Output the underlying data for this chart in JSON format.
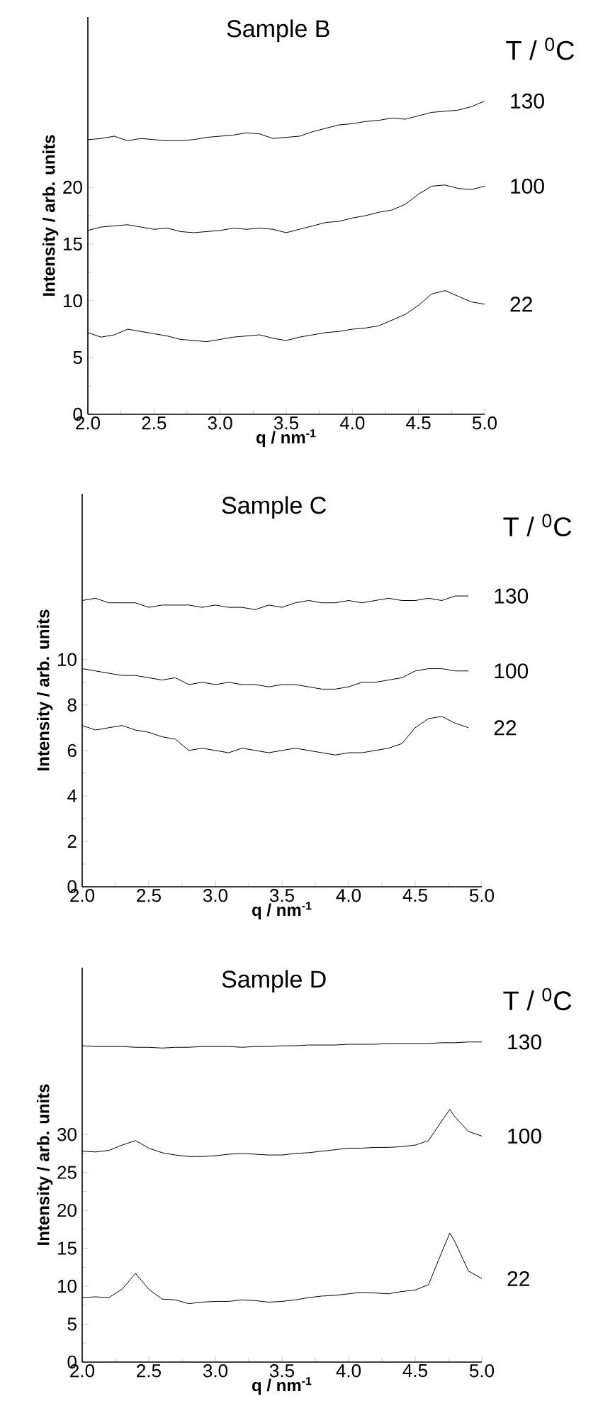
{
  "chart_data": [
    {
      "type": "line",
      "title": "Sample B",
      "xlabel": "**q / nm$^{-1}$**",
      "ylabel": "**Intensity / arb. units**",
      "legend_title": "T / $^{0}$C",
      "marker": "none",
      "xlim": [
        2.0,
        5.0
      ],
      "ylim": [
        0,
        35
      ],
      "xticks": [
        {
          "value": 2.0,
          "label": "2.0"
        },
        {
          "value": 2.5,
          "label": "2.5"
        },
        {
          "value": 3.0,
          "label": "3.0"
        },
        {
          "value": 3.5,
          "label": "3.5"
        },
        {
          "value": 4.0,
          "label": "4.0"
        },
        {
          "value": 4.5,
          "label": "4.5"
        },
        {
          "value": 5.0,
          "label": "5.0"
        }
      ],
      "yticks": [
        0,
        5,
        10,
        15,
        20
      ],
      "x": [
        2.0,
        2.1,
        2.2,
        2.3,
        2.4,
        2.5,
        2.6,
        2.7,
        2.8,
        2.9,
        3.0,
        3.1,
        3.2,
        3.3,
        3.4,
        3.5,
        3.6,
        3.7,
        3.8,
        3.9,
        4.0,
        4.1,
        4.2,
        4.3,
        4.4,
        4.5,
        4.6,
        4.7,
        4.8,
        4.9,
        5.0
      ],
      "series": [
        {
          "name": "130",
          "color": "#000000",
          "values": [
            24.2,
            24.3,
            24.5,
            24.1,
            24.3,
            24.2,
            24.1,
            24.1,
            24.2,
            24.4,
            24.5,
            24.6,
            24.8,
            24.7,
            24.3,
            24.4,
            24.5,
            24.9,
            25.2,
            25.5,
            25.6,
            25.8,
            25.9,
            26.1,
            26.0,
            26.3,
            26.6,
            26.7,
            26.8,
            27.1,
            27.6
          ]
        },
        {
          "name": "100",
          "color": "#000000",
          "values": [
            16.2,
            16.5,
            16.6,
            16.7,
            16.5,
            16.3,
            16.4,
            16.1,
            16.0,
            16.1,
            16.2,
            16.4,
            16.3,
            16.4,
            16.3,
            16.0,
            16.3,
            16.6,
            16.9,
            17.0,
            17.3,
            17.5,
            17.8,
            18.0,
            18.5,
            19.4,
            20.1,
            20.2,
            19.9,
            19.8,
            20.1
          ]
        },
        {
          "name": "22",
          "color": "#000000",
          "values": [
            7.2,
            6.8,
            7.0,
            7.5,
            7.3,
            7.1,
            6.9,
            6.6,
            6.5,
            6.4,
            6.6,
            6.8,
            6.9,
            7.0,
            6.7,
            6.5,
            6.8,
            7.0,
            7.2,
            7.3,
            7.5,
            7.6,
            7.8,
            8.3,
            8.8,
            9.6,
            10.6,
            10.9,
            10.4,
            9.9,
            9.7
          ]
        }
      ]
    },
    {
      "type": "line",
      "title": "Sample C",
      "xlabel": "**q / nm$^{-1}$**",
      "ylabel": "**Intensity / arb. units**",
      "legend_title": "T / $^{0}$C",
      "marker": "none",
      "xlim": [
        2.0,
        5.0
      ],
      "ylim": [
        0,
        17.3
      ],
      "xticks": [
        {
          "value": 2.0,
          "label": "2.0"
        },
        {
          "value": 2.5,
          "label": "2.5"
        },
        {
          "value": 3.0,
          "label": "3.0"
        },
        {
          "value": 3.5,
          "label": "3.5"
        },
        {
          "value": 4.0,
          "label": "4.0"
        },
        {
          "value": 4.5,
          "label": "4.5"
        },
        {
          "value": 5.0,
          "label": "5.0"
        }
      ],
      "yticks": [
        0,
        2,
        4,
        6,
        8,
        10
      ],
      "x": [
        2.0,
        2.1,
        2.2,
        2.3,
        2.4,
        2.5,
        2.6,
        2.7,
        2.8,
        2.9,
        3.0,
        3.1,
        3.2,
        3.3,
        3.4,
        3.5,
        3.6,
        3.7,
        3.8,
        3.9,
        4.0,
        4.1,
        4.2,
        4.3,
        4.4,
        4.5,
        4.6,
        4.7,
        4.8,
        4.9
      ],
      "series": [
        {
          "name": "130",
          "color": "#000000",
          "values": [
            12.6,
            12.7,
            12.5,
            12.5,
            12.5,
            12.3,
            12.4,
            12.4,
            12.4,
            12.3,
            12.4,
            12.3,
            12.3,
            12.2,
            12.4,
            12.3,
            12.5,
            12.6,
            12.5,
            12.5,
            12.6,
            12.5,
            12.6,
            12.7,
            12.6,
            12.6,
            12.7,
            12.6,
            12.8,
            12.8
          ]
        },
        {
          "name": "100",
          "color": "#000000",
          "values": [
            9.6,
            9.5,
            9.4,
            9.3,
            9.3,
            9.2,
            9.1,
            9.2,
            8.9,
            9.0,
            8.9,
            9.0,
            8.9,
            8.9,
            8.8,
            8.9,
            8.9,
            8.8,
            8.7,
            8.7,
            8.8,
            9.0,
            9.0,
            9.1,
            9.2,
            9.5,
            9.6,
            9.6,
            9.5,
            9.5
          ]
        },
        {
          "name": "22",
          "color": "#000000",
          "values": [
            7.1,
            6.9,
            7.0,
            7.1,
            6.9,
            6.8,
            6.6,
            6.5,
            6.0,
            6.1,
            6.0,
            5.9,
            6.1,
            6.0,
            5.9,
            6.0,
            6.1,
            6.0,
            5.9,
            5.8,
            5.9,
            5.9,
            6.0,
            6.1,
            6.3,
            7.0,
            7.4,
            7.5,
            7.2,
            7.0
          ]
        }
      ]
    },
    {
      "type": "line",
      "title": "Sample D",
      "xlabel": "**q / nm$^{-1}$**",
      "ylabel": "**Intensity / arb. units**",
      "legend_title": "T / $^{0}$C",
      "marker": "none",
      "xlim": [
        2.0,
        5.0
      ],
      "ylim": [
        0,
        52
      ],
      "xticks": [
        {
          "value": 2.0,
          "label": "2.0"
        },
        {
          "value": 2.5,
          "label": "2.5"
        },
        {
          "value": 3.0,
          "label": "3.0"
        },
        {
          "value": 3.5,
          "label": "3.5"
        },
        {
          "value": 4.0,
          "label": "4.0"
        },
        {
          "value": 4.5,
          "label": "4.5"
        },
        {
          "value": 5.0,
          "label": "5.0"
        }
      ],
      "yticks": [
        0,
        5,
        10,
        15,
        20,
        25,
        30
      ],
      "x": [
        2.0,
        2.1,
        2.2,
        2.3,
        2.4,
        2.5,
        2.6,
        2.7,
        2.8,
        2.9,
        3.0,
        3.1,
        3.2,
        3.3,
        3.4,
        3.5,
        3.6,
        3.7,
        3.8,
        3.9,
        4.0,
        4.1,
        4.2,
        4.3,
        4.4,
        4.5,
        4.6,
        4.7,
        4.76,
        4.8,
        4.9,
        5.0
      ],
      "series": [
        {
          "name": "130",
          "color": "#000000",
          "values": [
            41.7,
            41.6,
            41.6,
            41.6,
            41.5,
            41.5,
            41.4,
            41.5,
            41.5,
            41.6,
            41.6,
            41.6,
            41.5,
            41.6,
            41.6,
            41.7,
            41.7,
            41.8,
            41.8,
            41.8,
            41.9,
            41.9,
            41.9,
            42.0,
            42.0,
            42.0,
            42.0,
            42.1,
            42.1,
            42.1,
            42.2,
            42.2
          ]
        },
        {
          "name": "100",
          "color": "#000000",
          "values": [
            27.8,
            27.7,
            27.9,
            28.6,
            29.2,
            28.2,
            27.6,
            27.3,
            27.1,
            27.1,
            27.2,
            27.4,
            27.5,
            27.4,
            27.3,
            27.3,
            27.5,
            27.6,
            27.8,
            28.0,
            28.2,
            28.2,
            28.3,
            28.3,
            28.4,
            28.6,
            29.2,
            31.8,
            33.3,
            32.3,
            30.4,
            29.8
          ]
        },
        {
          "name": "22",
          "color": "#000000",
          "values": [
            8.5,
            8.6,
            8.5,
            9.6,
            11.7,
            9.6,
            8.3,
            8.2,
            7.7,
            7.9,
            8.0,
            8.0,
            8.2,
            8.1,
            7.9,
            8.0,
            8.2,
            8.5,
            8.7,
            8.8,
            9.0,
            9.2,
            9.1,
            9.0,
            9.3,
            9.5,
            10.2,
            14.5,
            17.0,
            15.8,
            12.0,
            11.0
          ]
        }
      ]
    }
  ]
}
